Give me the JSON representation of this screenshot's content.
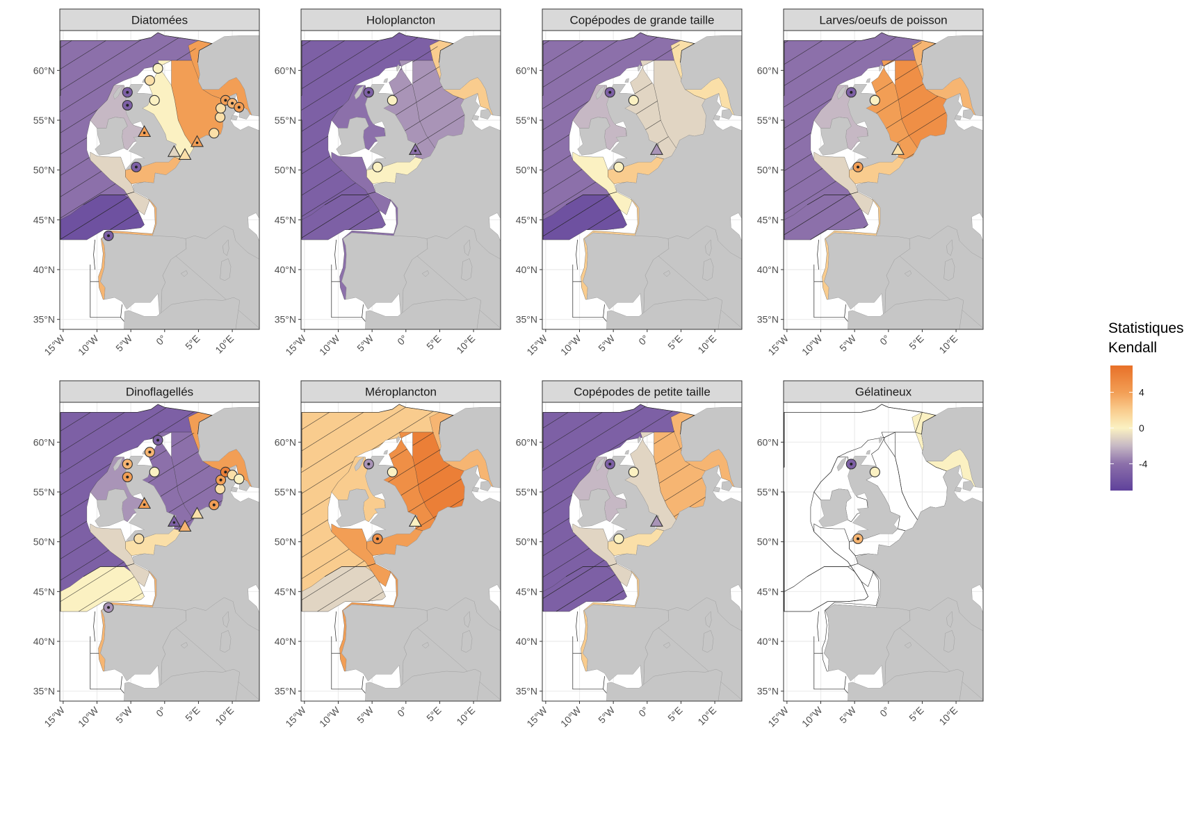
{
  "legend": {
    "title_line1": "Statistiques",
    "title_line2": "Kendall",
    "ticks": [
      "4",
      "0",
      "-4"
    ],
    "values": [
      4,
      0,
      -4
    ],
    "range": [
      -7,
      7
    ]
  },
  "axes": {
    "lat_labels": [
      "60°N",
      "55°N",
      "50°N",
      "45°N",
      "40°N",
      "35°N"
    ],
    "lat_values": [
      60,
      55,
      50,
      45,
      40,
      35
    ],
    "lon_labels": [
      "15°W",
      "10°W",
      "5°W",
      "0°",
      "5°E",
      "10°E"
    ],
    "lon_values": [
      -15,
      -10,
      -5,
      0,
      5,
      10
    ],
    "lon_range": [
      -15.5,
      14
    ],
    "lat_range": [
      34,
      64
    ]
  },
  "colors": {
    "strong_negative": "#6a4aa0",
    "moderate_negative": "#a893b4",
    "weak_negative": "#d8cabd",
    "neutral": "#fbf1c2",
    "weak_positive": "#f9c98e",
    "moderate_positive": "#f4a35e",
    "strong_positive": "#e9772e",
    "land": "#c6c6c6",
    "strip": "#d9d9d9"
  },
  "panels": [
    {
      "title": "Diatomées",
      "regions": {
        "atlantic": -4,
        "biscay": -6,
        "celtic": -1,
        "channel": 3,
        "northsea_west": 0,
        "northsea_east": 4,
        "norwegian": 4,
        "irish": -2,
        "iberia": 3
      },
      "hatched": [
        "atlantic",
        "biscay"
      ],
      "stations": [
        {
          "type": "circle",
          "lon": -5.5,
          "lat": 57.8,
          "value": -5
        },
        {
          "type": "circle",
          "lon": -5.5,
          "lat": 56.5,
          "value": -5
        },
        {
          "type": "circle",
          "lon": -1,
          "lat": 60.2,
          "value": 0
        },
        {
          "type": "circle",
          "lon": -2.2,
          "lat": 59,
          "value": 1
        },
        {
          "type": "circle",
          "lon": -1.5,
          "lat": 57,
          "value": 0
        },
        {
          "type": "circle",
          "lon": -4.2,
          "lat": 50.3,
          "value": -5
        },
        {
          "type": "circle",
          "lon": -8.3,
          "lat": 43.4,
          "value": -5
        },
        {
          "type": "circle",
          "lon": 7.3,
          "lat": 53.7,
          "value": 1
        },
        {
          "type": "circle",
          "lon": 8.2,
          "lat": 55.3,
          "value": 1
        },
        {
          "type": "circle",
          "lon": 8.3,
          "lat": 56.2,
          "value": 1
        },
        {
          "type": "circle",
          "lon": 9,
          "lat": 57,
          "value": 4
        },
        {
          "type": "circle",
          "lon": 10,
          "lat": 56.7,
          "value": 3
        },
        {
          "type": "circle",
          "lon": 11,
          "lat": 56.3,
          "value": 4
        },
        {
          "type": "triangle",
          "lon": -3,
          "lat": 53.8,
          "value": 4
        },
        {
          "type": "triangle",
          "lon": 1.4,
          "lat": 51.8,
          "value": -1
        },
        {
          "type": "triangle",
          "lon": 3,
          "lat": 51.5,
          "value": 1
        },
        {
          "type": "triangle",
          "lon": 4.8,
          "lat": 52.8,
          "value": 4
        }
      ]
    },
    {
      "title": "Holoplancton",
      "regions": {
        "atlantic": -5,
        "biscay": -5,
        "celtic": -4,
        "channel": 0,
        "northsea_west": -3,
        "northsea_east": -3,
        "norwegian": 2,
        "irish": -4,
        "iberia": -4
      },
      "hatched": [
        "atlantic",
        "biscay",
        "northsea_west",
        "northsea_east"
      ],
      "stations": [
        {
          "type": "circle",
          "lon": -5.5,
          "lat": 57.8,
          "value": -5
        },
        {
          "type": "circle",
          "lon": -2,
          "lat": 57,
          "value": 0
        },
        {
          "type": "circle",
          "lon": -4.2,
          "lat": 50.3,
          "value": 0
        },
        {
          "type": "triangle",
          "lon": 1.4,
          "lat": 52,
          "value": -4
        }
      ]
    },
    {
      "title": "Copépodes de grande taille",
      "regions": {
        "atlantic": -4,
        "biscay": -6,
        "celtic": 0,
        "channel": 2,
        "northsea_west": -1,
        "northsea_east": -1,
        "norwegian": 1,
        "irish": -2,
        "iberia": 2
      },
      "hatched": [
        "atlantic",
        "biscay",
        "northsea_west"
      ],
      "stations": [
        {
          "type": "circle",
          "lon": -5.5,
          "lat": 57.8,
          "value": -5
        },
        {
          "type": "circle",
          "lon": -2,
          "lat": 57,
          "value": 0
        },
        {
          "type": "circle",
          "lon": -4.2,
          "lat": 50.3,
          "value": 0
        },
        {
          "type": "triangle",
          "lon": 1.4,
          "lat": 52,
          "value": -3
        }
      ]
    },
    {
      "title": "Larves/oeufs de poisson",
      "regions": {
        "atlantic": -4,
        "biscay": -4,
        "celtic": -1,
        "channel": 2,
        "northsea_west": 4,
        "northsea_east": 5,
        "norwegian": 3,
        "irish": -2,
        "iberia": 2
      },
      "hatched": [
        "atlantic",
        "biscay",
        "northsea_west",
        "northsea_east"
      ],
      "stations": [
        {
          "type": "circle",
          "lon": -5.5,
          "lat": 57.8,
          "value": -5
        },
        {
          "type": "circle",
          "lon": -2,
          "lat": 57,
          "value": 0
        },
        {
          "type": "circle",
          "lon": -4.5,
          "lat": 50.3,
          "value": 4
        },
        {
          "type": "triangle",
          "lon": 1.4,
          "lat": 52,
          "value": 1
        }
      ]
    },
    {
      "title": "Dinoflagellés",
      "regions": {
        "atlantic": -5,
        "biscay": 0,
        "celtic": -1,
        "channel": 1,
        "northsea_west": -4,
        "northsea_east": -4,
        "norwegian": 4,
        "irish": -3,
        "iberia": 3
      },
      "hatched": [
        "atlantic",
        "northsea_west",
        "northsea_east"
      ],
      "stations": [
        {
          "type": "circle",
          "lon": -5.5,
          "lat": 57.8,
          "value": 3
        },
        {
          "type": "circle",
          "lon": -5.5,
          "lat": 56.5,
          "value": 4
        },
        {
          "type": "circle",
          "lon": -1,
          "lat": 60.2,
          "value": -5
        },
        {
          "type": "circle",
          "lon": -2.2,
          "lat": 59,
          "value": 3
        },
        {
          "type": "circle",
          "lon": -1.5,
          "lat": 57,
          "value": 0
        },
        {
          "type": "circle",
          "lon": -3.8,
          "lat": 50.3,
          "value": 1
        },
        {
          "type": "circle",
          "lon": -8.3,
          "lat": 43.4,
          "value": -3
        },
        {
          "type": "circle",
          "lon": 7.3,
          "lat": 53.7,
          "value": 4
        },
        {
          "type": "circle",
          "lon": 8.2,
          "lat": 55.3,
          "value": 1
        },
        {
          "type": "circle",
          "lon": 8.3,
          "lat": 56.2,
          "value": 4
        },
        {
          "type": "circle",
          "lon": 9,
          "lat": 57,
          "value": 6
        },
        {
          "type": "circle",
          "lon": 10,
          "lat": 56.7,
          "value": 1
        },
        {
          "type": "circle",
          "lon": 11,
          "lat": 56.3,
          "value": 0
        },
        {
          "type": "triangle",
          "lon": -3,
          "lat": 53.8,
          "value": 4
        },
        {
          "type": "triangle",
          "lon": 1.4,
          "lat": 52,
          "value": -5
        },
        {
          "type": "triangle",
          "lon": 3,
          "lat": 51.5,
          "value": 3
        },
        {
          "type": "triangle",
          "lon": 4.8,
          "lat": 52.8,
          "value": 1
        }
      ]
    },
    {
      "title": "Méroplancton",
      "regions": {
        "atlantic": 2,
        "biscay": -1,
        "celtic": 4,
        "channel": 4,
        "northsea_west": 5,
        "northsea_east": 6,
        "norwegian": 3,
        "irish": 2,
        "iberia": 4
      },
      "hatched": [
        "atlantic",
        "northsea_west",
        "northsea_east"
      ],
      "stations": [
        {
          "type": "circle",
          "lon": -5.5,
          "lat": 57.8,
          "value": -3
        },
        {
          "type": "circle",
          "lon": -2,
          "lat": 57,
          "value": 0
        },
        {
          "type": "circle",
          "lon": -4.2,
          "lat": 50.3,
          "value": 5
        },
        {
          "type": "triangle",
          "lon": 1.4,
          "lat": 52,
          "value": 0
        }
      ]
    },
    {
      "title": "Copépodes de petite taille",
      "regions": {
        "atlantic": -5,
        "biscay": -5,
        "celtic": -1,
        "channel": 1,
        "northsea_west": -1,
        "northsea_east": 3,
        "norwegian": 3,
        "irish": -2,
        "iberia": 2
      },
      "hatched": [
        "atlantic",
        "biscay",
        "northsea_east"
      ],
      "stations": [
        {
          "type": "circle",
          "lon": -5.5,
          "lat": 57.8,
          "value": -5
        },
        {
          "type": "circle",
          "lon": -2,
          "lat": 57,
          "value": 0
        },
        {
          "type": "circle",
          "lon": -4.2,
          "lat": 50.3,
          "value": 0
        },
        {
          "type": "triangle",
          "lon": 1.4,
          "lat": 52,
          "value": -3
        }
      ]
    },
    {
      "title": "Gélatineux",
      "regions": {
        "norwegian": 0
      },
      "hatched": [],
      "stations": [
        {
          "type": "circle",
          "lon": -5.5,
          "lat": 57.8,
          "value": -5
        },
        {
          "type": "circle",
          "lon": -2,
          "lat": 57,
          "value": 0
        },
        {
          "type": "circle",
          "lon": -4.5,
          "lat": 50.3,
          "value": 3
        }
      ]
    }
  ]
}
